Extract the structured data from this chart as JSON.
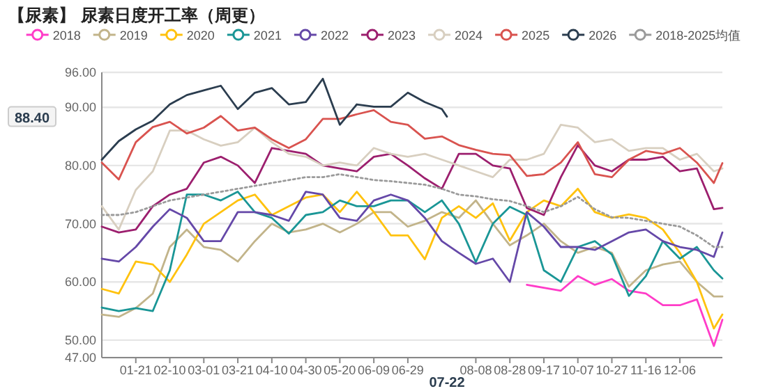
{
  "chart_data": {
    "type": "line",
    "title": "【尿素】 尿素日度开工率（周更）",
    "x": [
      "--01-01",
      "--01-11",
      "--01-21",
      "--01-31",
      "--02-10",
      "--02-20",
      "--03-01",
      "--03-11",
      "--03-21",
      "--03-31",
      "--04-10",
      "--04-20",
      "--04-30",
      "--05-10",
      "--05-20",
      "--05-30",
      "--06-09",
      "--06-19",
      "--06-29",
      "--07-09",
      "--07-19",
      "--07-29",
      "--08-08",
      "--08-18",
      "--08-28",
      "--09-07",
      "--09-17",
      "--09-27",
      "--10-07",
      "--10-17",
      "--10-27",
      "--11-06",
      "--11-16",
      "--11-26",
      "--12-06",
      "--12-16",
      "--12-26",
      "--12-31"
    ],
    "xlim": [
      "--01-01",
      "--12-31"
    ],
    "xticks": [
      {
        "value": "--01-21",
        "label": "01-21"
      },
      {
        "value": "--02-10",
        "label": "02-10"
      },
      {
        "value": "--03-01",
        "label": "03-01"
      },
      {
        "value": "--03-21",
        "label": "03-21"
      },
      {
        "value": "--04-10",
        "label": "04-10"
      },
      {
        "value": "--04-30",
        "label": "04-30"
      },
      {
        "value": "--05-20",
        "label": "05-20"
      },
      {
        "value": "--06-09",
        "label": "06-09"
      },
      {
        "value": "--06-29",
        "label": "06-29"
      },
      {
        "value": "--08-08",
        "label": "08-08"
      },
      {
        "value": "--08-28",
        "label": "08-28"
      },
      {
        "value": "--09-17",
        "label": "09-17"
      },
      {
        "value": "--10-07",
        "label": "10-07"
      },
      {
        "value": "--10-27",
        "label": "10-27"
      },
      {
        "value": "--11-16",
        "label": "11-16"
      },
      {
        "value": "--12-06",
        "label": "12-06"
      }
    ],
    "ylim": [
      47,
      96
    ],
    "yticks": [
      {
        "value": 47,
        "label": "47.00"
      },
      {
        "value": 50,
        "label": "50.00"
      },
      {
        "value": 60,
        "label": "60.00"
      },
      {
        "value": 70,
        "label": "70.00"
      },
      {
        "value": 80,
        "label": "80.00"
      },
      {
        "value": 90,
        "label": "90.00"
      },
      {
        "value": 96,
        "label": "96.00"
      }
    ],
    "grid": "y",
    "legend": "top",
    "series": [
      {
        "name": "2018",
        "color": "#ff3cc8",
        "values": [
          null,
          null,
          null,
          null,
          null,
          null,
          null,
          null,
          null,
          null,
          null,
          null,
          null,
          null,
          null,
          null,
          null,
          null,
          null,
          null,
          null,
          null,
          null,
          null,
          null,
          59.5,
          59,
          58.5,
          61,
          59.5,
          60.5,
          58.5,
          58,
          56,
          56,
          57,
          49,
          53.5
        ]
      },
      {
        "name": "2019",
        "color": "#c2b48a",
        "values": [
          54.4,
          54,
          55.5,
          58,
          66,
          69,
          66,
          65.5,
          63.5,
          67,
          70,
          68.5,
          69,
          70,
          68.5,
          70,
          72,
          72,
          69.5,
          70.5,
          72,
          71,
          74,
          70,
          66.3,
          68,
          70,
          67,
          65,
          66,
          65,
          59.2,
          62,
          63,
          63.5,
          60,
          57.5,
          57.5
        ]
      },
      {
        "name": "2020",
        "color": "#ffc20e",
        "values": [
          58.8,
          58,
          63.5,
          63,
          60,
          64.7,
          70,
          72,
          74,
          75,
          71.5,
          73,
          74.5,
          75,
          72,
          75.5,
          72,
          68,
          68,
          63.9,
          71,
          73,
          71,
          73.5,
          67.1,
          72,
          74,
          73,
          76,
          72,
          71,
          71.6,
          71,
          69,
          65,
          60,
          52,
          54.4
        ]
      },
      {
        "name": "2021",
        "color": "#1a9696",
        "values": [
          55.6,
          55,
          55.5,
          55,
          62,
          75,
          75,
          74,
          75.5,
          72,
          71,
          68.3,
          71.5,
          72,
          74,
          73,
          73,
          74,
          74,
          72,
          74,
          70,
          63.4,
          70,
          72.9,
          71.5,
          62,
          60,
          66,
          67,
          64.7,
          57.6,
          61,
          67,
          64,
          66,
          62,
          60.6
        ]
      },
      {
        "name": "2022",
        "color": "#6548a8",
        "values": [
          64,
          63.5,
          66,
          69.5,
          72.5,
          71,
          67,
          67,
          72,
          72,
          71.5,
          70.5,
          75.5,
          75,
          71,
          70.5,
          74,
          75,
          74,
          71,
          67,
          65,
          63.1,
          64,
          60,
          72,
          69.5,
          66,
          66,
          65.5,
          67,
          68.5,
          69,
          67,
          66,
          65.5,
          64.3,
          68.5
        ]
      },
      {
        "name": "2023",
        "color": "#9c1f6e",
        "values": [
          69.5,
          68.5,
          69,
          73,
          75,
          76,
          80.5,
          81.5,
          80,
          77,
          83,
          82.5,
          82,
          80,
          79.5,
          79,
          81.5,
          82,
          80,
          77.8,
          76,
          82,
          82,
          80,
          79.5,
          72.7,
          71.5,
          78,
          83.5,
          80,
          79,
          81,
          81,
          81.5,
          79,
          79.5,
          72.5,
          72.7
        ]
      },
      {
        "name": "2024",
        "color": "#d8cfc0",
        "values": [
          73,
          69,
          75.8,
          79,
          86,
          86,
          84.5,
          83.4,
          84,
          86.5,
          84,
          82,
          81.5,
          80,
          80.5,
          80,
          83,
          82,
          81.5,
          82,
          81,
          80,
          79,
          78,
          81,
          81,
          82,
          87,
          86.5,
          84,
          84.5,
          82.5,
          83,
          83,
          81,
          82,
          79,
          79.5
        ]
      },
      {
        "name": "2025",
        "color": "#d9534f",
        "values": [
          80.5,
          77.6,
          84,
          86.6,
          87.5,
          85.5,
          86.5,
          88.5,
          86,
          86.5,
          84.5,
          83,
          84.5,
          88,
          88,
          88.8,
          89.5,
          87.5,
          87,
          84.6,
          85,
          83.5,
          82.7,
          82,
          81.8,
          78.2,
          78.5,
          80.5,
          84,
          78.5,
          78,
          81,
          82.5,
          82,
          83,
          80.5,
          77,
          80.4
        ]
      },
      {
        "name": "2026",
        "color": "#2b3d4f",
        "x": [
          "--01-01",
          "--01-11",
          "--01-21",
          "--01-31",
          "--02-10",
          "--02-20",
          "--03-01",
          "--03-11",
          "--03-21",
          "--03-31",
          "--04-10",
          "--04-20",
          "--04-30",
          "--05-10",
          "--05-20",
          "--05-30",
          "--06-09",
          "--06-19",
          "--06-29",
          "--07-09",
          "--07-19",
          "--07-22"
        ],
        "values": [
          81,
          84.2,
          86.2,
          87.7,
          90.5,
          92.1,
          92.9,
          93.7,
          89.7,
          92.5,
          93.3,
          90.5,
          90.9,
          94.9,
          87,
          90.5,
          90.1,
          90.1,
          92.5,
          90.9,
          89.7,
          88.4
        ]
      },
      {
        "name": "2018-2025均值",
        "color": "#9a9a9a",
        "line_style": "dotted",
        "values": [
          71.5,
          71.5,
          72,
          73,
          74,
          74.5,
          75,
          75.5,
          76,
          76.5,
          77,
          77.5,
          78,
          78,
          78.5,
          78,
          77.5,
          77.3,
          77,
          76.7,
          76,
          75,
          74.7,
          74.2,
          73.9,
          73,
          72,
          73,
          74.6,
          72.5,
          71.1,
          71,
          70.5,
          70,
          69.5,
          68,
          66,
          66
        ]
      }
    ],
    "annotations": [
      "88.40",
      "07-22"
    ]
  }
}
